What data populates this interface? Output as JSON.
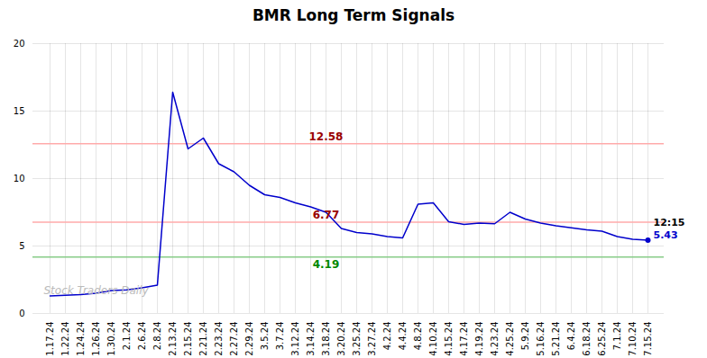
{
  "chart_data": {
    "type": "line",
    "title": "BMR Long Term Signals",
    "categories": [
      "1.17.24",
      "1.22.24",
      "1.24.24",
      "1.26.24",
      "1.30.24",
      "2.1.24",
      "2.6.24",
      "2.8.24",
      "2.13.24",
      "2.15.24",
      "2.21.24",
      "2.23.24",
      "2.27.24",
      "2.29.24",
      "3.5.24",
      "3.7.24",
      "3.12.24",
      "3.14.24",
      "3.18.24",
      "3.20.24",
      "3.25.24",
      "3.27.24",
      "4.2.24",
      "4.4.24",
      "4.8.24",
      "4.10.24",
      "4.15.24",
      "4.17.24",
      "4.19.24",
      "4.23.24",
      "4.25.24",
      "5.9.24",
      "5.16.24",
      "5.21.24",
      "6.4.24",
      "6.18.24",
      "6.25.24",
      "7.1.24",
      "7.10.24",
      "7.15.24"
    ],
    "values": [
      1.3,
      1.35,
      1.4,
      1.5,
      1.7,
      1.75,
      1.9,
      2.1,
      16.4,
      12.2,
      13.0,
      11.1,
      10.5,
      9.5,
      8.8,
      8.6,
      8.2,
      7.9,
      7.5,
      6.3,
      6.0,
      5.9,
      5.7,
      5.6,
      8.1,
      8.2,
      6.8,
      6.6,
      6.7,
      6.65,
      7.5,
      7.0,
      6.7,
      6.5,
      6.35,
      6.2,
      6.1,
      5.7,
      5.5,
      5.43
    ],
    "color": "#0000cc",
    "ylim": [
      0,
      20
    ],
    "yticks": [
      0,
      5,
      10,
      15,
      20
    ],
    "grid": true,
    "reference_lines": [
      {
        "value": 12.58,
        "color": "#ffaaaa",
        "text": "12.58",
        "text_color": "#990000"
      },
      {
        "value": 6.77,
        "color": "#ffaaaa",
        "text": "6.77",
        "text_color": "#990000"
      },
      {
        "value": 4.19,
        "color": "#88cc88",
        "text": "4.19",
        "text_color": "#008800"
      }
    ],
    "annotations": [
      {
        "text": "12:15",
        "color": "#000000"
      },
      {
        "text": "5.43",
        "color": "#0000cc"
      }
    ],
    "watermark": {
      "text": "Stock Traders Daily",
      "color": "#bbbbbb"
    }
  }
}
